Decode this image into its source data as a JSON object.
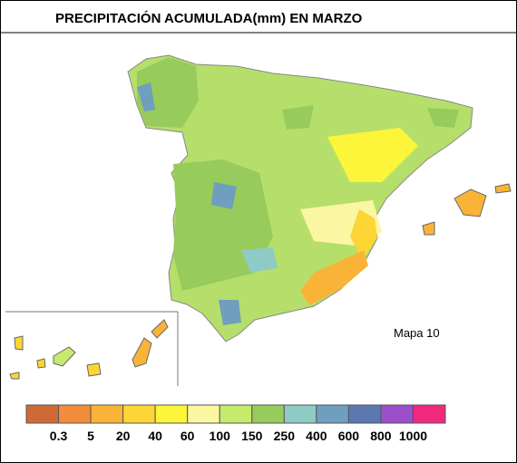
{
  "header": {
    "title": "PRECIPITACIÓN ACUMULADA(mm) EN MARZO"
  },
  "map_label": "Mapa 10",
  "legend": {
    "colors": [
      "#cf6a36",
      "#f38c3b",
      "#f9b437",
      "#fdd534",
      "#fcf53a",
      "#fbf6a2",
      "#c6ea6c",
      "#97cb5b",
      "#8dcbc4",
      "#6f9ebf",
      "#5b79b0",
      "#9b4fcb",
      "#ef2a7c"
    ],
    "labels": [
      "0.3",
      "5",
      "20",
      "40",
      "60",
      "100",
      "150",
      "250",
      "400",
      "600",
      "800",
      "1000"
    ]
  }
}
